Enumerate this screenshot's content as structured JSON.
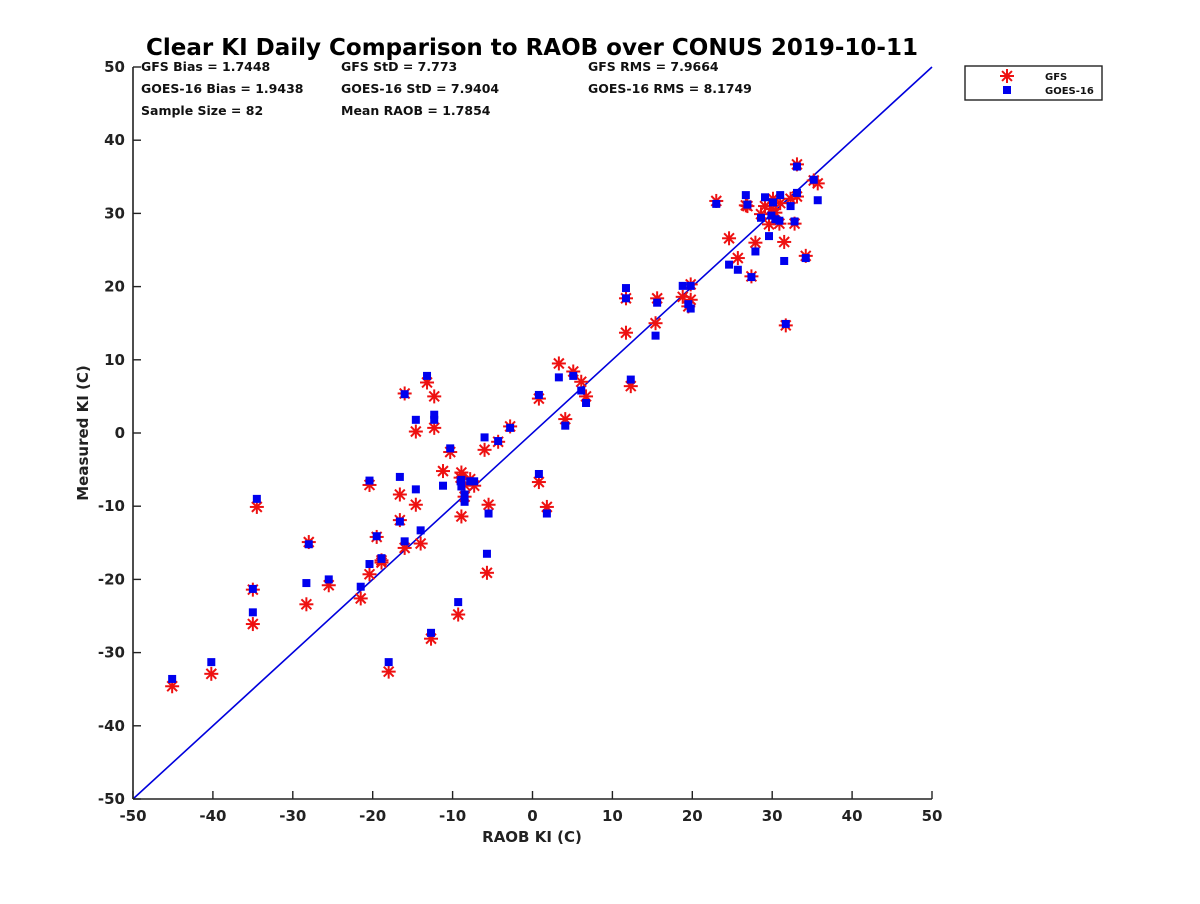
{
  "chart_data": {
    "type": "scatter",
    "title": "Clear KI Daily Comparison to RAOB over CONUS 2019-10-11",
    "xlabel": "RAOB KI (C)",
    "ylabel": "Measured KI (C)",
    "xlim": [
      -50,
      50
    ],
    "ylim": [
      -50,
      50
    ],
    "x_ticks": [
      "-50",
      "-40",
      "-30",
      "-20",
      "-10",
      "0",
      "10",
      "20",
      "30",
      "40",
      "50"
    ],
    "y_ticks": [
      "-50",
      "-40",
      "-30",
      "-20",
      "-10",
      "0",
      "10",
      "20",
      "30",
      "40",
      "50"
    ],
    "grid": false,
    "legend_position": "top-right, outside plot",
    "reference_line": {
      "from": [
        -50,
        -50
      ],
      "to": [
        50,
        50
      ],
      "color": "#0000dd"
    },
    "stats": [
      [
        "GFS Bias = 1.7448",
        "GFS StD = 7.773",
        "GFS RMS = 7.9664"
      ],
      [
        "GOES-16 Bias = 1.9438",
        "GOES-16 StD = 7.9404",
        "GOES-16 RMS = 8.1749"
      ],
      [
        "Sample Size = 82",
        "Mean RAOB = 1.7854"
      ]
    ],
    "series": [
      {
        "name": "GFS",
        "marker": "asterisk",
        "color": "#ee1111",
        "points": [
          [
            -45.1,
            -34.6
          ],
          [
            -40.2,
            -32.9
          ],
          [
            -35.0,
            -26.1
          ],
          [
            -35.0,
            -21.4
          ],
          [
            -34.5,
            -10.1
          ],
          [
            -28.3,
            -23.4
          ],
          [
            -28.0,
            -14.9
          ],
          [
            -25.5,
            -20.8
          ],
          [
            -21.5,
            -22.6
          ],
          [
            -20.4,
            -19.3
          ],
          [
            -20.4,
            -7.1
          ],
          [
            -19.5,
            -14.2
          ],
          [
            -18.9,
            -17.7
          ],
          [
            -18.0,
            -32.6
          ],
          [
            -16.6,
            -11.9
          ],
          [
            -16.6,
            -8.4
          ],
          [
            -16.0,
            -15.7
          ],
          [
            -16.0,
            5.4
          ],
          [
            -14.6,
            -9.8
          ],
          [
            -14.6,
            0.2
          ],
          [
            -14.0,
            -15.1
          ],
          [
            -13.2,
            6.9
          ],
          [
            -12.7,
            -28.1
          ],
          [
            -12.3,
            5.0
          ],
          [
            -12.3,
            0.7
          ],
          [
            -11.2,
            -5.2
          ],
          [
            -10.3,
            -2.6
          ],
          [
            -9.3,
            -24.8
          ],
          [
            -8.9,
            -5.4
          ],
          [
            -8.9,
            -11.4
          ],
          [
            -8.5,
            -7.1
          ],
          [
            -8.5,
            -8.7
          ],
          [
            -7.8,
            -6.3
          ],
          [
            -7.3,
            -7.2
          ],
          [
            -6.0,
            -2.3
          ],
          [
            -5.7,
            -19.1
          ],
          [
            -5.5,
            -9.8
          ],
          [
            -4.3,
            -1.2
          ],
          [
            -2.8,
            0.9
          ],
          [
            0.8,
            -6.7
          ],
          [
            0.8,
            4.7
          ],
          [
            1.8,
            -10.1
          ],
          [
            3.3,
            9.5
          ],
          [
            4.1,
            1.9
          ],
          [
            5.1,
            8.4
          ],
          [
            6.1,
            7.0
          ],
          [
            6.7,
            5.0
          ],
          [
            11.7,
            13.7
          ],
          [
            11.7,
            18.4
          ],
          [
            12.3,
            6.4
          ],
          [
            15.4,
            15.0
          ],
          [
            15.6,
            18.4
          ],
          [
            18.8,
            18.6
          ],
          [
            19.5,
            17.3
          ],
          [
            19.8,
            20.3
          ],
          [
            19.8,
            18.2
          ],
          [
            23.0,
            31.7
          ],
          [
            24.6,
            26.6
          ],
          [
            25.7,
            23.9
          ],
          [
            26.7,
            31.1
          ],
          [
            27.4,
            21.4
          ],
          [
            27.9,
            26.0
          ],
          [
            28.6,
            29.9
          ],
          [
            29.1,
            31.0
          ],
          [
            29.6,
            28.5
          ],
          [
            30.1,
            32.0
          ],
          [
            30.4,
            30.1
          ],
          [
            31.0,
            31.4
          ],
          [
            31.5,
            26.1
          ],
          [
            31.7,
            14.7
          ],
          [
            32.3,
            32.0
          ],
          [
            32.8,
            28.6
          ],
          [
            33.1,
            36.7
          ],
          [
            33.1,
            32.3
          ],
          [
            34.2,
            24.2
          ],
          [
            35.2,
            34.5
          ],
          [
            35.7,
            34.1
          ],
          [
            26.9,
            31.0
          ],
          [
            29.9,
            30.6
          ],
          [
            30.9,
            28.6
          ],
          [
            -18.9,
            -17.4
          ],
          [
            -9.0,
            -6.1
          ]
        ]
      },
      {
        "name": "GOES-16",
        "marker": "square",
        "color": "#0000ee",
        "points": [
          [
            -45.1,
            -33.6
          ],
          [
            -40.2,
            -31.3
          ],
          [
            -35.0,
            -24.5
          ],
          [
            -35.0,
            -21.3
          ],
          [
            -34.5,
            -9.0
          ],
          [
            -28.3,
            -20.5
          ],
          [
            -28.0,
            -15.2
          ],
          [
            -25.5,
            -20.0
          ],
          [
            -21.5,
            -21.0
          ],
          [
            -20.4,
            -17.9
          ],
          [
            -20.4,
            -6.5
          ],
          [
            -19.5,
            -14.1
          ],
          [
            -18.9,
            -17.2
          ],
          [
            -18.0,
            -31.3
          ],
          [
            -16.6,
            -12.1
          ],
          [
            -16.6,
            -6.0
          ],
          [
            -16.0,
            -14.8
          ],
          [
            -16.0,
            5.3
          ],
          [
            -14.6,
            -7.7
          ],
          [
            -14.6,
            1.8
          ],
          [
            -14.0,
            -13.3
          ],
          [
            -13.2,
            7.8
          ],
          [
            -12.7,
            -27.3
          ],
          [
            -12.3,
            2.5
          ],
          [
            -12.3,
            1.8
          ],
          [
            -11.2,
            -7.2
          ],
          [
            -10.3,
            -2.1
          ],
          [
            -9.3,
            -23.1
          ],
          [
            -8.9,
            -6.4
          ],
          [
            -8.9,
            -7.3
          ],
          [
            -8.5,
            -9.4
          ],
          [
            -8.5,
            -8.4
          ],
          [
            -7.8,
            -6.6
          ],
          [
            -7.3,
            -6.6
          ],
          [
            -6.0,
            -0.6
          ],
          [
            -5.7,
            -16.5
          ],
          [
            -5.5,
            -11.0
          ],
          [
            -4.3,
            -1.1
          ],
          [
            -2.8,
            0.7
          ],
          [
            0.8,
            -5.6
          ],
          [
            0.8,
            5.2
          ],
          [
            1.8,
            -11.0
          ],
          [
            3.3,
            7.6
          ],
          [
            4.1,
            1.0
          ],
          [
            5.1,
            7.8
          ],
          [
            6.1,
            5.8
          ],
          [
            6.7,
            4.1
          ],
          [
            11.7,
            19.8
          ],
          [
            11.7,
            18.4
          ],
          [
            12.3,
            7.3
          ],
          [
            15.4,
            13.3
          ],
          [
            15.6,
            17.8
          ],
          [
            18.8,
            20.1
          ],
          [
            19.5,
            17.6
          ],
          [
            19.8,
            20.1
          ],
          [
            19.8,
            17.0
          ],
          [
            23.0,
            31.3
          ],
          [
            24.6,
            23.0
          ],
          [
            25.7,
            22.3
          ],
          [
            26.7,
            32.5
          ],
          [
            27.4,
            21.3
          ],
          [
            27.9,
            24.8
          ],
          [
            28.6,
            29.4
          ],
          [
            29.1,
            32.2
          ],
          [
            29.6,
            26.9
          ],
          [
            30.1,
            31.5
          ],
          [
            30.4,
            29.2
          ],
          [
            31.0,
            32.5
          ],
          [
            31.5,
            23.5
          ],
          [
            31.7,
            14.9
          ],
          [
            32.3,
            31.0
          ],
          [
            32.8,
            28.9
          ],
          [
            33.1,
            36.4
          ],
          [
            33.1,
            32.8
          ],
          [
            34.2,
            23.9
          ],
          [
            35.2,
            34.6
          ],
          [
            35.7,
            31.8
          ],
          [
            26.9,
            31.2
          ],
          [
            29.9,
            29.7
          ],
          [
            30.9,
            29.0
          ],
          [
            -18.9,
            -17.1
          ],
          [
            -9.0,
            -6.6
          ]
        ]
      }
    ]
  }
}
